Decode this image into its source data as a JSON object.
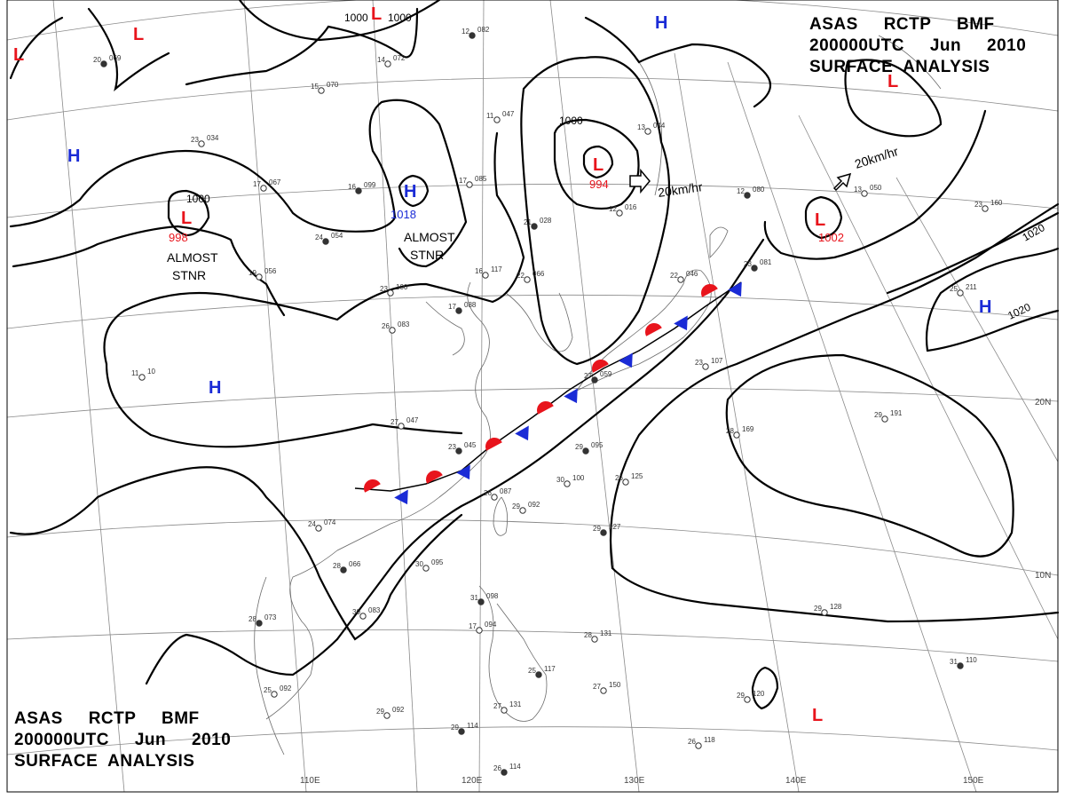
{
  "title": {
    "line1": [
      "ASAS",
      "RCTP",
      "BMF"
    ],
    "line2": [
      "200000UTC",
      "Jun",
      "2010"
    ],
    "line3": "SURFACE  ANALYSIS"
  },
  "longitude_labels": [
    "110E",
    "120E",
    "130E",
    "140E",
    "150E"
  ],
  "latitude_labels": [
    "20N",
    "10N"
  ],
  "pressure_centers": [
    {
      "type": "L",
      "value": "998",
      "note": "ALMOST STNR"
    },
    {
      "type": "H",
      "value": "1018",
      "note": "ALMOST STNR"
    },
    {
      "type": "L",
      "value": "994"
    },
    {
      "type": "L",
      "value": "1002"
    },
    {
      "type": "H",
      "value": ""
    },
    {
      "type": "H",
      "value": ""
    },
    {
      "type": "H",
      "value": ""
    },
    {
      "type": "H",
      "value": ""
    },
    {
      "type": "L",
      "value": ""
    },
    {
      "type": "L",
      "value": ""
    },
    {
      "type": "L",
      "value": ""
    },
    {
      "type": "L",
      "value": ""
    },
    {
      "type": "L",
      "value": ""
    }
  ],
  "isobar_labels": [
    "1000",
    "1000",
    "1000",
    "1000",
    "1020",
    "1020"
  ],
  "motion_vectors": [
    "20km/hr",
    "20km/hr"
  ],
  "colors": {
    "low": "#e8141c",
    "high": "#1a2bd6",
    "warm_front": "#e8141c",
    "cold_front": "#1a2bd6",
    "isobar": "#000000",
    "grid": "#8a8a8a",
    "coast": "#6a6a6a"
  },
  "stations": [
    {
      "t": "20",
      "p": "069"
    },
    {
      "t": "15",
      "p": "070"
    },
    {
      "t": "14",
      "p": "072"
    },
    {
      "t": "12",
      "p": "082"
    },
    {
      "t": "23",
      "p": "034"
    },
    {
      "t": "17",
      "p": "067"
    },
    {
      "t": "16",
      "p": "099"
    },
    {
      "t": "17",
      "p": "085"
    },
    {
      "t": "11",
      "p": "047"
    },
    {
      "t": "24",
      "p": "054"
    },
    {
      "t": "19",
      "p": "056"
    },
    {
      "t": "23",
      "p": "100"
    },
    {
      "t": "17",
      "p": "088"
    },
    {
      "t": "26",
      "p": "083"
    },
    {
      "t": "22",
      "p": "066"
    },
    {
      "t": "21",
      "p": "028"
    },
    {
      "t": "16",
      "p": "117"
    },
    {
      "t": "27",
      "p": "047"
    },
    {
      "t": "23",
      "p": "045"
    },
    {
      "t": "26",
      "p": "087"
    },
    {
      "t": "24",
      "p": "074"
    },
    {
      "t": "28",
      "p": "066"
    },
    {
      "t": "30",
      "p": "095"
    },
    {
      "t": "29",
      "p": "092"
    },
    {
      "t": "29",
      "p": "095"
    },
    {
      "t": "30",
      "p": "100"
    },
    {
      "t": "26",
      "p": "125"
    },
    {
      "t": "29",
      "p": "127"
    },
    {
      "t": "28",
      "p": "169"
    },
    {
      "t": "29",
      "p": "191"
    },
    {
      "t": "12",
      "p": "080"
    },
    {
      "t": "13",
      "p": "050"
    },
    {
      "t": "23",
      "p": "160"
    },
    {
      "t": "23",
      "p": "081"
    },
    {
      "t": "22",
      "p": "046"
    },
    {
      "t": "23",
      "p": "107"
    },
    {
      "t": "27",
      "p": "059"
    },
    {
      "t": "12",
      "p": "016"
    },
    {
      "t": "13",
      "p": "044"
    },
    {
      "t": "31",
      "p": "098"
    },
    {
      "t": "17",
      "p": "094"
    },
    {
      "t": "28",
      "p": "131"
    },
    {
      "t": "25",
      "p": "117"
    },
    {
      "t": "27",
      "p": "150"
    },
    {
      "t": "29",
      "p": "128"
    },
    {
      "t": "31",
      "p": "110"
    },
    {
      "t": "29",
      "p": "120"
    },
    {
      "t": "26",
      "p": "118"
    },
    {
      "t": "26",
      "p": "114"
    },
    {
      "t": "29",
      "p": "092"
    },
    {
      "t": "25",
      "p": "092"
    },
    {
      "t": "28",
      "p": "073"
    },
    {
      "t": "30",
      "p": "083"
    },
    {
      "t": "27",
      "p": "131"
    },
    {
      "t": "29",
      "p": "114"
    },
    {
      "t": "25",
      "p": "211"
    },
    {
      "t": "11",
      "p": "10"
    }
  ]
}
